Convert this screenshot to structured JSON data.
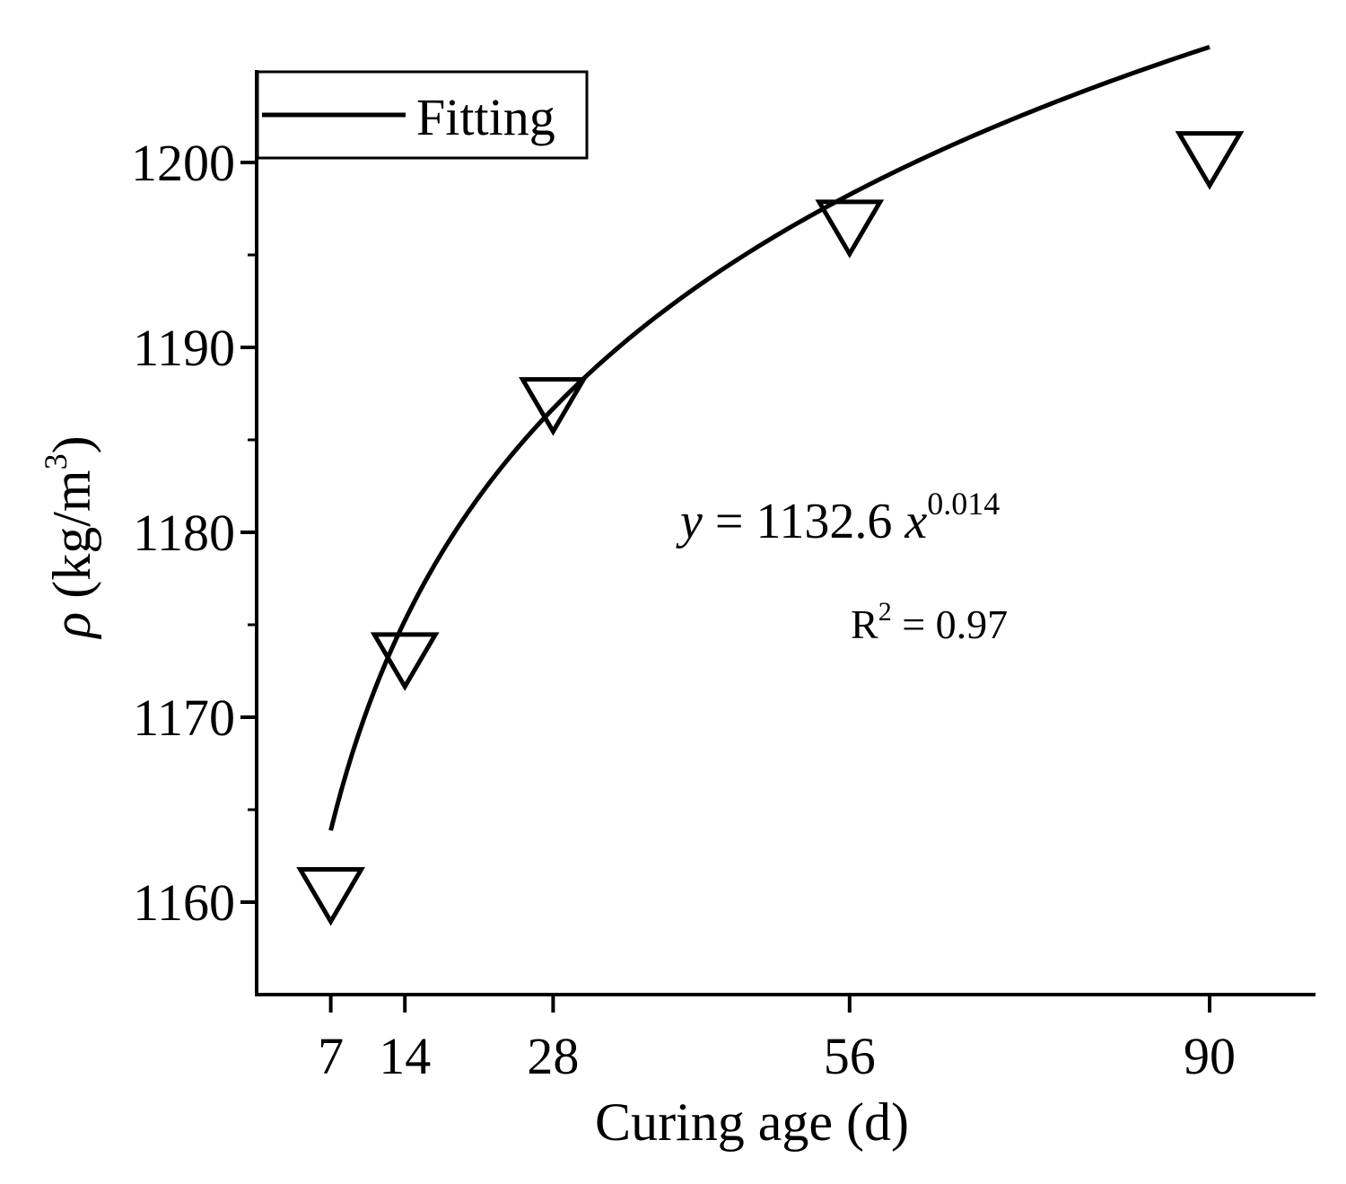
{
  "chart_data": {
    "type": "scatter",
    "xlabel": "Curing age (d)",
    "ylabel_parts": {
      "symbol": "ρ",
      "unit": " (kg/m",
      "sup": "3",
      "close": ")"
    },
    "x_ticks": [
      7,
      14,
      28,
      56,
      90
    ],
    "y_ticks": [
      1160,
      1170,
      1180,
      1190,
      1200
    ],
    "xlim": [
      0,
      100
    ],
    "ylim": [
      1155,
      1205
    ],
    "series": [
      {
        "marker": "down-triangle",
        "x": [
          7,
          14,
          28,
          56,
          90
        ],
        "y": [
          1160.8,
          1173.5,
          1187.3,
          1196.9,
          1200.6
        ]
      }
    ],
    "fit": {
      "name": "Fitting",
      "model": "power",
      "a": 1132.6,
      "b": 0.014,
      "x_range": [
        7,
        90
      ]
    },
    "annotations": {
      "equation": {
        "y": "y",
        "eq": " = 1132.6 ",
        "x": "x",
        "exp": "0.014"
      },
      "r2": {
        "r": "R",
        "sup": "2",
        "rest": " = 0.97"
      }
    },
    "legend": {
      "position": "top-left",
      "label": "Fitting"
    },
    "grid": false
  }
}
